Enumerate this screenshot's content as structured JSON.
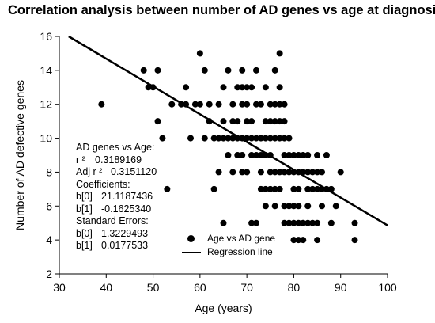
{
  "chart_data": {
    "type": "scatter",
    "title": "Correlation analysis between number of AD genes vs age at diagnosis",
    "xlabel": "Age (years)",
    "ylabel": "Number of AD defective genes",
    "xlim": [
      30,
      100
    ],
    "ylim": [
      2,
      16
    ],
    "xticks": [
      "30",
      "40",
      "50",
      "60",
      "70",
      "80",
      "90",
      "100"
    ],
    "yticks": [
      "2",
      "4",
      "6",
      "8",
      "10",
      "12",
      "14",
      "16"
    ],
    "grid": false,
    "legend_position": "bottom-center",
    "series": [
      {
        "name": "Age vs AD gene",
        "marker": "circle",
        "color": "#000000",
        "points": [
          [
            39,
            12
          ],
          [
            48,
            14
          ],
          [
            49,
            13
          ],
          [
            50,
            13
          ],
          [
            51,
            14
          ],
          [
            51,
            11
          ],
          [
            52,
            10
          ],
          [
            53,
            7
          ],
          [
            54,
            12
          ],
          [
            56,
            12
          ],
          [
            57,
            13
          ],
          [
            57,
            12
          ],
          [
            58,
            10
          ],
          [
            59,
            12
          ],
          [
            60,
            15
          ],
          [
            60,
            12
          ],
          [
            61,
            14
          ],
          [
            61,
            10
          ],
          [
            62,
            12
          ],
          [
            62,
            11
          ],
          [
            63,
            10
          ],
          [
            63,
            7
          ],
          [
            64,
            12
          ],
          [
            64,
            10
          ],
          [
            64,
            8
          ],
          [
            65,
            13
          ],
          [
            65,
            11
          ],
          [
            65,
            10
          ],
          [
            65,
            5
          ],
          [
            66,
            14
          ],
          [
            66,
            10
          ],
          [
            66,
            9
          ],
          [
            67,
            12
          ],
          [
            67,
            11
          ],
          [
            67,
            10
          ],
          [
            67,
            8
          ],
          [
            68,
            13
          ],
          [
            68,
            11
          ],
          [
            68,
            10
          ],
          [
            68,
            9
          ],
          [
            69,
            14
          ],
          [
            69,
            13
          ],
          [
            69,
            12
          ],
          [
            69,
            10
          ],
          [
            69,
            9
          ],
          [
            69,
            8
          ],
          [
            70,
            13
          ],
          [
            70,
            12
          ],
          [
            70,
            11
          ],
          [
            70,
            10
          ],
          [
            70,
            8
          ],
          [
            71,
            13
          ],
          [
            71,
            11
          ],
          [
            71,
            10
          ],
          [
            71,
            9
          ],
          [
            71,
            5
          ],
          [
            72,
            14
          ],
          [
            72,
            12
          ],
          [
            72,
            10
          ],
          [
            72,
            9
          ],
          [
            72,
            5
          ],
          [
            73,
            12
          ],
          [
            73,
            10
          ],
          [
            73,
            9
          ],
          [
            73,
            8
          ],
          [
            73,
            7
          ],
          [
            74,
            13
          ],
          [
            74,
            11
          ],
          [
            74,
            10
          ],
          [
            74,
            9
          ],
          [
            74,
            7
          ],
          [
            74,
            6
          ],
          [
            75,
            12
          ],
          [
            75,
            11
          ],
          [
            75,
            10
          ],
          [
            75,
            9
          ],
          [
            75,
            8
          ],
          [
            75,
            7
          ],
          [
            76,
            14
          ],
          [
            76,
            12
          ],
          [
            76,
            11
          ],
          [
            76,
            10
          ],
          [
            76,
            8
          ],
          [
            76,
            7
          ],
          [
            76,
            6
          ],
          [
            77,
            15
          ],
          [
            77,
            13
          ],
          [
            77,
            12
          ],
          [
            77,
            11
          ],
          [
            77,
            10
          ],
          [
            77,
            8
          ],
          [
            77,
            7
          ],
          [
            78,
            12
          ],
          [
            78,
            11
          ],
          [
            78,
            10
          ],
          [
            78,
            9
          ],
          [
            78,
            8
          ],
          [
            78,
            6
          ],
          [
            78,
            5
          ],
          [
            79,
            10
          ],
          [
            79,
            9
          ],
          [
            79,
            8
          ],
          [
            79,
            6
          ],
          [
            79,
            5
          ],
          [
            80,
            9
          ],
          [
            80,
            8
          ],
          [
            80,
            7
          ],
          [
            80,
            6
          ],
          [
            80,
            5
          ],
          [
            80,
            4
          ],
          [
            81,
            9
          ],
          [
            81,
            8
          ],
          [
            81,
            7
          ],
          [
            81,
            6
          ],
          [
            81,
            5
          ],
          [
            81,
            4
          ],
          [
            82,
            9
          ],
          [
            82,
            8
          ],
          [
            82,
            5
          ],
          [
            82,
            4
          ],
          [
            83,
            9
          ],
          [
            83,
            8
          ],
          [
            83,
            7
          ],
          [
            83,
            6
          ],
          [
            83,
            5
          ],
          [
            84,
            8
          ],
          [
            84,
            7
          ],
          [
            84,
            5
          ],
          [
            85,
            9
          ],
          [
            85,
            8
          ],
          [
            85,
            7
          ],
          [
            85,
            5
          ],
          [
            85,
            4
          ],
          [
            86,
            8
          ],
          [
            86,
            7
          ],
          [
            86,
            6
          ],
          [
            87,
            9
          ],
          [
            87,
            7
          ],
          [
            88,
            7
          ],
          [
            88,
            5
          ],
          [
            89,
            6
          ],
          [
            90,
            8
          ],
          [
            93,
            5
          ],
          [
            93,
            4
          ]
        ]
      },
      {
        "name": "Regression line",
        "type": "line",
        "color": "#000000",
        "x": [
          32,
          100
        ],
        "y": [
          16.0,
          4.86
        ]
      }
    ],
    "stats": {
      "heading": "AD genes vs Age:",
      "r2_label": "r ²",
      "r2": "0.3189169",
      "adj_r2_label": "Adj r ²",
      "adj_r2": "0.3151120",
      "coef_heading": "Coefficients:",
      "b0_label": "b[0]",
      "b0": "21.1187436",
      "b1_label": "b[1]",
      "b1": "-0.1625340",
      "se_heading": "Standard Errors:",
      "se_b0_label": "b[0]",
      "se_b0": "1.3229493",
      "se_b1_label": "b[1]",
      "se_b1": "0.0177533"
    }
  }
}
